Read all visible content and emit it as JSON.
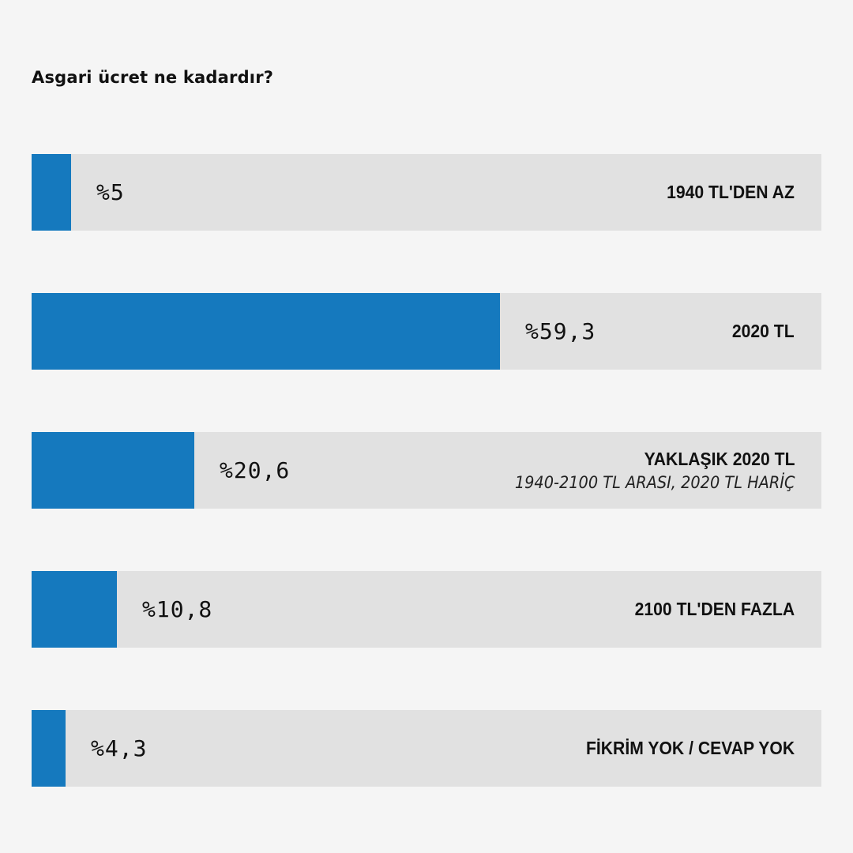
{
  "chart_data": {
    "type": "bar",
    "title": "Asgari ücret ne kadardır?",
    "xlim": [
      0,
      100
    ],
    "categories": [
      "1940 TL'DEN AZ",
      "2020 TL",
      "YAKLAŞIK 2020 TL",
      "2100 TL'DEN FAZLA",
      "FİKRİM YOK / CEVAP YOK"
    ],
    "sublabels": [
      "",
      "",
      "1940-2100 TL ARASI, 2020 TL HARİÇ",
      "",
      ""
    ],
    "values": [
      5,
      59.3,
      20.6,
      10.8,
      4.3
    ],
    "value_labels": [
      "%5",
      "%59,3",
      "%20,6",
      "%10,8",
      "%4,3"
    ],
    "colors": {
      "fill": "#1579be",
      "track": "#e1e1e1",
      "background": "#f5f5f5"
    }
  }
}
